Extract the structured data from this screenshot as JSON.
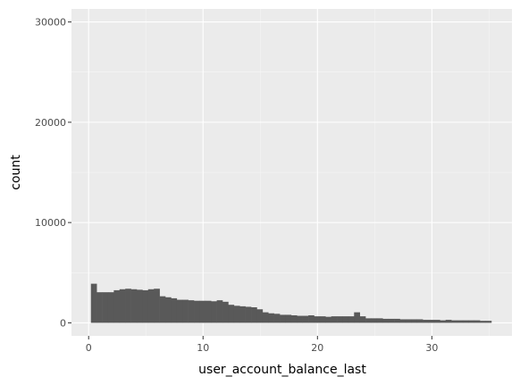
{
  "chart_data": {
    "type": "bar",
    "subtype": "histogram",
    "title": "",
    "xlabel": "user_account_balance_last",
    "ylabel": "count",
    "xlim": [
      -1.5,
      37
    ],
    "ylim": [
      -1300,
      31300
    ],
    "x_ticks": [
      0,
      10,
      20,
      30
    ],
    "y_ticks": [
      0,
      10000,
      20000,
      30000
    ],
    "x_tick_labels": [
      "0",
      "10",
      "20",
      "30"
    ],
    "y_tick_labels": [
      "0",
      "10000",
      "20000",
      "30000"
    ],
    "grid": true,
    "legend": "none",
    "colors": {
      "bar": "#595959",
      "panel": "#ebebeb",
      "grid_major": "#ffffff",
      "grid_minor": "#f5f5f5"
    },
    "bin_start": 0.2,
    "bin_width": 0.5,
    "values": [
      3900,
      3050,
      3050,
      3050,
      3250,
      3350,
      3400,
      3350,
      3300,
      3250,
      3350,
      3400,
      2650,
      2550,
      2450,
      2300,
      2300,
      2250,
      2200,
      2200,
      2200,
      2150,
      2250,
      2100,
      1800,
      1700,
      1650,
      1600,
      1550,
      1350,
      1050,
      950,
      900,
      800,
      800,
      750,
      700,
      700,
      750,
      650,
      650,
      600,
      650,
      650,
      650,
      650,
      1050,
      650,
      450,
      450,
      450,
      400,
      400,
      400,
      350,
      350,
      350,
      350,
      300,
      300,
      300,
      250,
      300,
      250,
      250,
      250,
      250,
      250,
      200,
      200
    ]
  }
}
